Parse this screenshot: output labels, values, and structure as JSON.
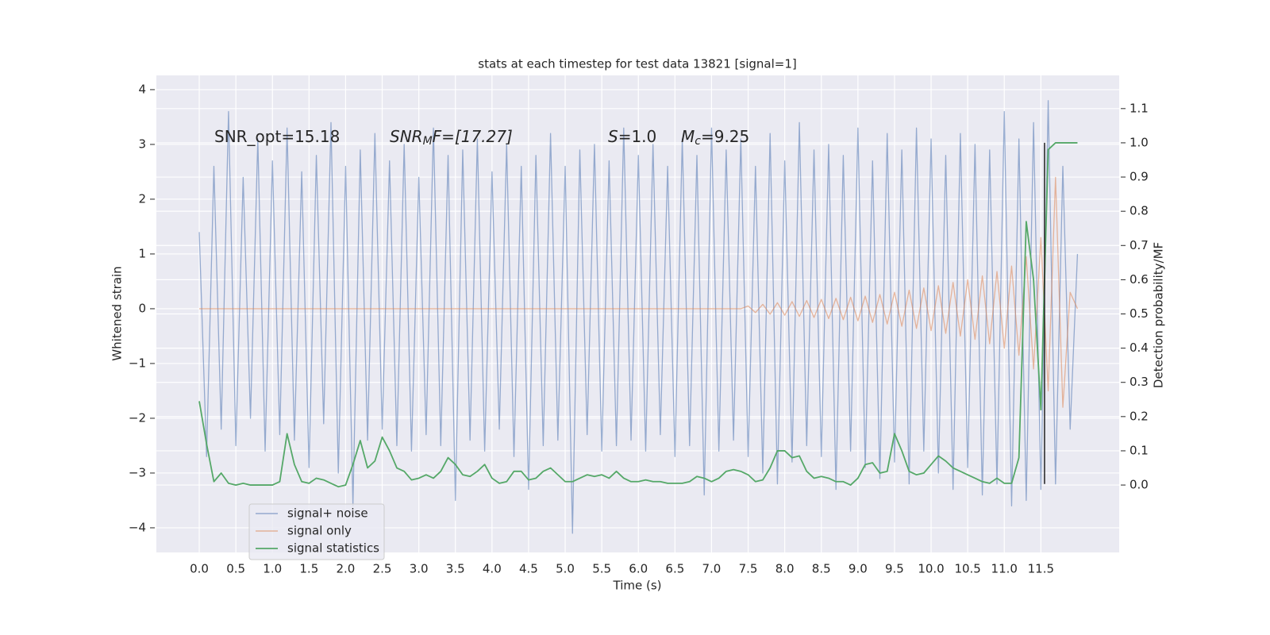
{
  "chart_data": {
    "type": "line",
    "title": "stats at each timestep for test data 13821 [signal=1]",
    "xlabel": "Time (s)",
    "ylabel": "Whitened strain",
    "y2label": "Detection probability/MF",
    "x": [
      0,
      0.1,
      0.2,
      0.3,
      0.4,
      0.5,
      0.6,
      0.7,
      0.8,
      0.9,
      1,
      1.1,
      1.2,
      1.3,
      1.4,
      1.5,
      1.6,
      1.7,
      1.8,
      1.9,
      2,
      2.1,
      2.2,
      2.3,
      2.4,
      2.5,
      2.6,
      2.7,
      2.8,
      2.9,
      3,
      3.1,
      3.2,
      3.3,
      3.4,
      3.5,
      3.6,
      3.7,
      3.8,
      3.9,
      4,
      4.1,
      4.2,
      4.3,
      4.4,
      4.5,
      4.6,
      4.7,
      4.8,
      4.9,
      5,
      5.1,
      5.2,
      5.3,
      5.4,
      5.5,
      5.6,
      5.7,
      5.8,
      5.9,
      6,
      6.1,
      6.2,
      6.3,
      6.4,
      6.5,
      6.6,
      6.7,
      6.8,
      6.9,
      7,
      7.1,
      7.2,
      7.3,
      7.4,
      7.5,
      7.6,
      7.7,
      7.8,
      7.9,
      8,
      8.1,
      8.2,
      8.3,
      8.4,
      8.5,
      8.6,
      8.7,
      8.8,
      8.9,
      9,
      9.1,
      9.2,
      9.3,
      9.4,
      9.5,
      9.6,
      9.7,
      9.8,
      9.9,
      10,
      10.1,
      10.2,
      10.3,
      10.4,
      10.5,
      10.6,
      10.7,
      10.8,
      10.9,
      11,
      11.1,
      11.2,
      11.3,
      11.4,
      11.5,
      11.6,
      11.7,
      11.8,
      11.9,
      12
    ],
    "series": [
      {
        "name": "signal+ noise",
        "color": "#4c72b0",
        "values": [
          1.4,
          -2.7,
          2.6,
          -2.2,
          3.6,
          -2.5,
          2.4,
          -2.0,
          3.1,
          -2.6,
          2.7,
          -2.3,
          3.3,
          -2.4,
          2.5,
          -2.9,
          2.8,
          -2.1,
          3.4,
          -3.0,
          2.6,
          -3.6,
          2.9,
          -2.4,
          3.2,
          -2.2,
          2.7,
          -2.5,
          3.0,
          -2.6,
          2.4,
          -2.3,
          3.3,
          -2.5,
          2.8,
          -3.5,
          2.9,
          -2.4,
          3.1,
          -2.6,
          2.5,
          -2.2,
          3.0,
          -2.7,
          2.6,
          -3.3,
          2.8,
          -2.5,
          3.2,
          -2.4,
          2.6,
          -4.1,
          2.9,
          -2.3,
          3.0,
          -2.6,
          2.7,
          -2.5,
          3.3,
          -2.4,
          2.8,
          -2.6,
          3.0,
          -2.3,
          2.6,
          -2.7,
          3.1,
          -2.5,
          2.8,
          -3.4,
          3.3,
          -2.6,
          2.9,
          -2.4,
          3.1,
          -2.7,
          2.6,
          -3.0,
          3.2,
          -3.2,
          2.7,
          -2.8,
          3.4,
          -2.5,
          2.9,
          -2.7,
          3.0,
          -3.3,
          2.8,
          -2.6,
          3.3,
          -2.9,
          2.7,
          -3.1,
          3.2,
          -2.8,
          2.9,
          -3.2,
          3.3,
          -2.6,
          3.1,
          -3.0,
          2.8,
          -3.3,
          3.2,
          -2.9,
          3.0,
          -3.4,
          2.9,
          -3.2,
          3.6,
          -3.6,
          3.1,
          -3.5,
          3.4,
          -3.3,
          3.8,
          -3.2,
          2.6,
          -2.2,
          1.0
        ]
      },
      {
        "name": "signal only",
        "color": "#dd8452",
        "values": [
          0,
          0,
          0,
          0,
          0,
          0,
          0,
          0,
          0,
          0,
          0,
          0,
          0,
          0,
          0,
          0,
          0,
          0,
          0,
          0,
          0,
          0,
          0,
          0,
          0,
          0,
          0,
          0,
          0,
          0,
          0,
          0,
          0,
          0,
          0,
          0,
          0,
          0,
          0,
          0,
          0,
          0,
          0,
          0,
          0,
          0,
          0,
          0,
          0,
          0,
          0,
          0,
          0,
          0,
          0,
          0,
          0,
          0,
          0,
          0,
          0,
          0,
          0,
          0,
          0,
          0,
          0,
          0,
          0,
          0,
          0,
          0,
          0,
          0,
          0,
          0.05,
          -0.07,
          0.08,
          -0.1,
          0.11,
          -0.12,
          0.13,
          -0.14,
          0.15,
          -0.16,
          0.17,
          -0.18,
          0.19,
          -0.2,
          0.21,
          -0.22,
          0.23,
          -0.25,
          0.26,
          -0.28,
          0.3,
          -0.32,
          0.34,
          -0.36,
          0.38,
          -0.4,
          0.42,
          -0.45,
          0.48,
          -0.5,
          0.53,
          -0.56,
          0.6,
          -0.64,
          0.68,
          -0.72,
          0.78,
          -0.85,
          0.95,
          -1.1,
          1.3,
          -1.5,
          2.4,
          -1.8,
          0.3,
          0
        ]
      },
      {
        "name": "signal statistics",
        "color": "#55a868",
        "axis": "y2",
        "values": [
          0.245,
          0.12,
          0.01,
          0.035,
          0.005,
          0,
          0.005,
          0,
          0,
          0,
          0,
          0.01,
          0.15,
          0.06,
          0.01,
          0.005,
          0.02,
          0.015,
          0.005,
          -0.005,
          0,
          0.06,
          0.13,
          0.05,
          0.07,
          0.14,
          0.1,
          0.05,
          0.04,
          0.015,
          0.02,
          0.03,
          0.02,
          0.04,
          0.08,
          0.06,
          0.03,
          0.025,
          0.04,
          0.06,
          0.02,
          0.005,
          0.01,
          0.04,
          0.04,
          0.015,
          0.02,
          0.04,
          0.05,
          0.03,
          0.01,
          0.01,
          0.02,
          0.03,
          0.025,
          0.03,
          0.02,
          0.04,
          0.02,
          0.01,
          0.01,
          0.015,
          0.01,
          0.01,
          0.005,
          0.005,
          0.005,
          0.01,
          0.025,
          0.02,
          0.01,
          0.02,
          0.04,
          0.045,
          0.04,
          0.03,
          0.01,
          0.015,
          0.05,
          0.1,
          0.1,
          0.08,
          0.085,
          0.04,
          0.02,
          0.025,
          0.02,
          0.01,
          0.01,
          0,
          0.02,
          0.06,
          0.065,
          0.035,
          0.04,
          0.15,
          0.1,
          0.04,
          0.03,
          0.035,
          0.06,
          0.085,
          0.07,
          0.05,
          0.04,
          0.03,
          0.02,
          0.01,
          0.005,
          0.02,
          0.005,
          0.005,
          0.08,
          0.77,
          0.6,
          0.22,
          0.98,
          1.0,
          1.0,
          1.0,
          1.0
        ]
      }
    ],
    "vline": {
      "x": 11.55,
      "ymin": -3.2,
      "ymax": 3.03,
      "color": "#222222"
    },
    "annotations": [
      {
        "text": "SNR_opt=15.18"
      },
      {
        "base": "SNR",
        "sub": "M",
        "rest": "F=[17.27]"
      },
      {
        "base": "S",
        "rest": "=1.0"
      },
      {
        "base": "M",
        "sub": "c",
        "rest": "=9.25"
      }
    ],
    "xlim": [
      -0.586,
      12.57
    ],
    "xticks": [
      {
        "value": 0,
        "label": "0.0"
      },
      0.5,
      {
        "value": 1,
        "label": "1.0"
      },
      1.5,
      {
        "value": 2,
        "label": "2.0"
      },
      2.5,
      {
        "value": 3,
        "label": "3.0"
      },
      3.5,
      {
        "value": 4,
        "label": "4.0"
      },
      4.5,
      {
        "value": 5,
        "label": "5.0"
      },
      5.5,
      {
        "value": 6,
        "label": "6.0"
      },
      6.5,
      {
        "value": 7,
        "label": "7.0"
      },
      7.5,
      {
        "value": 8,
        "label": "8.0"
      },
      8.5,
      {
        "value": 9,
        "label": "9.0"
      },
      9.5,
      {
        "value": 10,
        "label": "10.0"
      },
      10.5,
      {
        "value": 11,
        "label": "11.0"
      },
      11.5
    ],
    "ylim": [
      -4.45,
      4.26
    ],
    "yticks": [
      {
        "value": -4,
        "label": "−4"
      },
      {
        "value": -3,
        "label": "−3"
      },
      {
        "value": -2,
        "label": "−2"
      },
      {
        "value": -1,
        "label": "−1"
      },
      0,
      1,
      2,
      3,
      4
    ],
    "y2lim": [
      -0.197,
      1.197
    ],
    "y2ticks": [
      {
        "value": 0,
        "label": "0.0"
      },
      0.1,
      0.2,
      0.3,
      0.4,
      0.5,
      0.6,
      0.7,
      0.8,
      0.9,
      {
        "value": 1,
        "label": "1.0"
      },
      1.1
    ],
    "grid": true,
    "legend": "lower left"
  }
}
